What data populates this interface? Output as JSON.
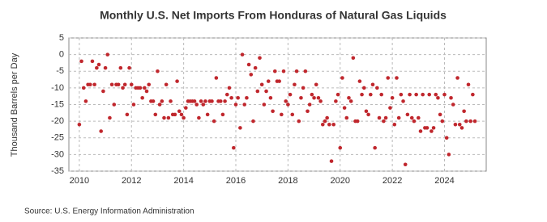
{
  "chart_data": {
    "type": "scatter",
    "title": "Monthly U.S. Net Imports From Honduras of Natural Gas Liquids",
    "y_label": "Thousand Barrels per Day",
    "source": "Source: U.S. Energy Information Administration",
    "color": "#c0272d",
    "grid": true,
    "xlim": [
      2009.6,
      2025.6
    ],
    "xticks": [
      2010,
      2012,
      2014,
      2016,
      2018,
      2020,
      2022,
      2024
    ],
    "ylim": [
      -35,
      5
    ],
    "yticks": [
      5,
      0,
      -5,
      -10,
      -15,
      -20,
      -25,
      -30,
      -35
    ],
    "x": [
      2010,
      2010.083,
      2010.167,
      2010.25,
      2010.333,
      2010.417,
      2010.5,
      2010.583,
      2010.667,
      2010.75,
      2010.833,
      2010.917,
      2011,
      2011.083,
      2011.167,
      2011.25,
      2011.333,
      2011.417,
      2011.5,
      2011.583,
      2011.667,
      2011.75,
      2011.833,
      2011.917,
      2012,
      2012.083,
      2012.167,
      2012.25,
      2012.333,
      2012.417,
      2012.5,
      2012.583,
      2012.667,
      2012.75,
      2012.833,
      2012.917,
      2013,
      2013.083,
      2013.167,
      2013.25,
      2013.333,
      2013.417,
      2013.5,
      2013.583,
      2013.667,
      2013.75,
      2013.833,
      2013.917,
      2014,
      2014.083,
      2014.167,
      2014.25,
      2014.333,
      2014.417,
      2014.5,
      2014.583,
      2014.667,
      2014.75,
      2014.833,
      2014.917,
      2015,
      2015.083,
      2015.167,
      2015.25,
      2015.333,
      2015.417,
      2015.5,
      2015.583,
      2015.667,
      2015.75,
      2015.833,
      2015.917,
      2016,
      2016.083,
      2016.167,
      2016.25,
      2016.333,
      2016.417,
      2016.5,
      2016.583,
      2016.667,
      2016.75,
      2016.833,
      2016.917,
      2017,
      2017.083,
      2017.167,
      2017.25,
      2017.333,
      2017.417,
      2017.5,
      2017.583,
      2017.667,
      2017.75,
      2017.833,
      2017.917,
      2018,
      2018.083,
      2018.167,
      2018.25,
      2018.333,
      2018.417,
      2018.5,
      2018.583,
      2018.667,
      2018.75,
      2018.833,
      2018.917,
      2019,
      2019.083,
      2019.167,
      2019.25,
      2019.333,
      2019.417,
      2019.5,
      2019.583,
      2019.667,
      2019.75,
      2019.833,
      2019.917,
      2020,
      2020.083,
      2020.167,
      2020.25,
      2020.333,
      2020.417,
      2020.5,
      2020.583,
      2020.667,
      2020.75,
      2020.833,
      2020.917,
      2021,
      2021.083,
      2021.167,
      2021.25,
      2021.333,
      2021.417,
      2021.5,
      2021.583,
      2021.667,
      2021.75,
      2021.833,
      2021.917,
      2022,
      2022.083,
      2022.167,
      2022.25,
      2022.333,
      2022.417,
      2022.5,
      2022.583,
      2022.667,
      2022.75,
      2022.833,
      2022.917,
      2023,
      2023.083,
      2023.167,
      2023.25,
      2023.333,
      2023.417,
      2023.5,
      2023.583,
      2023.667,
      2023.75,
      2023.833,
      2023.917,
      2024,
      2024.083,
      2024.167,
      2024.25,
      2024.333,
      2024.417,
      2024.5,
      2024.583,
      2024.667,
      2024.75,
      2024.833,
      2024.917,
      2025,
      2025.083,
      2025.167
    ],
    "values": [
      -21,
      -2,
      -10,
      -14,
      -9,
      -9,
      -2,
      -9,
      -4,
      -3,
      -23,
      -11,
      -4,
      0,
      -19,
      -9,
      -15,
      -9,
      -9,
      -4,
      -10,
      -9,
      -18,
      -4,
      -9,
      -15,
      -10,
      -10,
      -10,
      -13,
      -10,
      -11,
      -9,
      -14,
      -14,
      -18,
      -5,
      -15,
      -14,
      -19,
      -9,
      -19,
      -14,
      -18,
      -18,
      -8,
      -17,
      -18,
      -19,
      -16,
      -14,
      -14,
      -14,
      -14,
      -15,
      -19,
      -14,
      -15,
      -14,
      -18,
      -14,
      -14,
      -20,
      -7,
      -14,
      -14,
      -18,
      -14,
      -12,
      -10,
      -13,
      -28,
      -15,
      -13,
      -22,
      0,
      -15,
      -13,
      -3,
      -6,
      -20,
      -4,
      -11,
      -1,
      -9,
      -15,
      -11,
      -8,
      -13,
      -17,
      -5,
      -8,
      -8,
      -18,
      -5,
      -14,
      -15,
      -12,
      -18,
      -9,
      -5,
      -20,
      -13,
      -10,
      -5,
      -17,
      -15,
      -12,
      -13,
      -9,
      -13,
      -14,
      -21,
      -20,
      -19,
      -21,
      -32,
      -21,
      -14,
      -12,
      -28,
      -7,
      -16,
      -19,
      -13,
      -14,
      -1,
      -20,
      -20,
      -8,
      -12,
      -10,
      -17,
      -18,
      -12,
      -9,
      -28,
      -10,
      -19,
      -12,
      -20,
      -19,
      -7,
      -16,
      -13,
      -21,
      -7,
      -19,
      -12,
      -14,
      -33,
      -18,
      -12,
      -19,
      -20,
      -12,
      -19,
      -23,
      -12,
      -22,
      -22,
      -12,
      -23,
      -22,
      -12,
      -13,
      -18,
      -20,
      -12,
      -25,
      -30,
      -13,
      -15,
      -21,
      -7,
      -21,
      -22,
      -17,
      -20,
      -9,
      -20,
      -12,
      -20
    ]
  }
}
